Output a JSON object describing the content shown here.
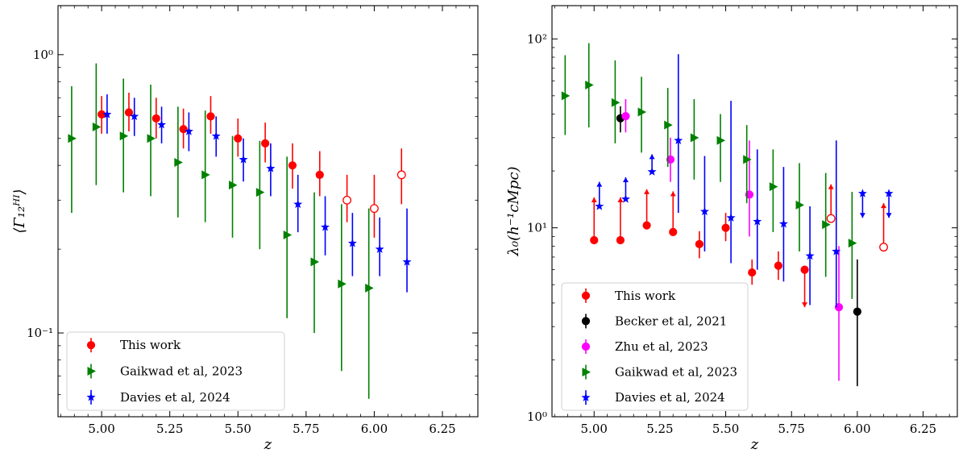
{
  "chart_data": [
    {
      "type": "scatter",
      "xlabel": "z",
      "ylabel": "⟨Γ₁₂ᴴᴵ⟩",
      "xlim": [
        4.84,
        6.38
      ],
      "ylim": [
        0.05,
        1.5
      ],
      "yscale": "log",
      "x_ticks": [
        5.0,
        5.25,
        5.5,
        5.75,
        6.0,
        6.25
      ],
      "x_tick_labels": [
        "5.00",
        "5.25",
        "5.50",
        "5.75",
        "6.00",
        "6.25"
      ],
      "y_ticks": [
        0.1,
        1.0
      ],
      "y_tick_labels": [
        "10⁻¹",
        "10⁰"
      ],
      "grid": false,
      "legend_position": "lower-left",
      "series": [
        {
          "name": "This work",
          "color": "#ff0000",
          "marker": "circle",
          "points": [
            {
              "x": 5.0,
              "y": 0.61,
              "lo": 0.52,
              "hi": 0.71
            },
            {
              "x": 5.1,
              "y": 0.62,
              "lo": 0.53,
              "hi": 0.73
            },
            {
              "x": 5.2,
              "y": 0.59,
              "lo": 0.5,
              "hi": 0.7
            },
            {
              "x": 5.3,
              "y": 0.54,
              "lo": 0.46,
              "hi": 0.64
            },
            {
              "x": 5.4,
              "y": 0.6,
              "lo": 0.52,
              "hi": 0.71
            },
            {
              "x": 5.5,
              "y": 0.5,
              "lo": 0.43,
              "hi": 0.59
            },
            {
              "x": 5.6,
              "y": 0.48,
              "lo": 0.41,
              "hi": 0.57
            },
            {
              "x": 5.7,
              "y": 0.4,
              "lo": 0.33,
              "hi": 0.48
            },
            {
              "x": 5.8,
              "y": 0.37,
              "lo": 0.31,
              "hi": 0.45
            },
            {
              "x": 5.9,
              "y": 0.3,
              "lo": 0.25,
              "hi": 0.37,
              "open": true
            },
            {
              "x": 6.0,
              "y": 0.28,
              "lo": 0.22,
              "hi": 0.37,
              "open": true
            },
            {
              "x": 6.1,
              "y": 0.37,
              "lo": 0.29,
              "hi": 0.46,
              "open": true
            }
          ]
        },
        {
          "name": "Gaikwad et al, 2023",
          "color": "#008000",
          "marker": "triangle-right",
          "points": [
            {
              "x": 4.89,
              "y": 0.5,
              "lo": 0.27,
              "hi": 0.77
            },
            {
              "x": 4.98,
              "y": 0.55,
              "lo": 0.34,
              "hi": 0.93
            },
            {
              "x": 5.08,
              "y": 0.51,
              "lo": 0.32,
              "hi": 0.82
            },
            {
              "x": 5.18,
              "y": 0.5,
              "lo": 0.31,
              "hi": 0.78
            },
            {
              "x": 5.28,
              "y": 0.41,
              "lo": 0.26,
              "hi": 0.65
            },
            {
              "x": 5.38,
              "y": 0.37,
              "lo": 0.25,
              "hi": 0.63
            },
            {
              "x": 5.48,
              "y": 0.34,
              "lo": 0.22,
              "hi": 0.51
            },
            {
              "x": 5.58,
              "y": 0.32,
              "lo": 0.2,
              "hi": 0.49
            },
            {
              "x": 5.68,
              "y": 0.225,
              "lo": 0.113,
              "hi": 0.43
            },
            {
              "x": 5.78,
              "y": 0.18,
              "lo": 0.1,
              "hi": 0.32
            },
            {
              "x": 5.88,
              "y": 0.15,
              "lo": 0.073,
              "hi": 0.29
            },
            {
              "x": 5.98,
              "y": 0.145,
              "lo": 0.058,
              "hi": 0.28
            }
          ]
        },
        {
          "name": "Davies et al, 2024",
          "color": "#0000ff",
          "marker": "star",
          "points": [
            {
              "x": 5.02,
              "y": 0.61,
              "lo": 0.52,
              "hi": 0.72
            },
            {
              "x": 5.12,
              "y": 0.6,
              "lo": 0.51,
              "hi": 0.7
            },
            {
              "x": 5.22,
              "y": 0.56,
              "lo": 0.48,
              "hi": 0.65
            },
            {
              "x": 5.32,
              "y": 0.53,
              "lo": 0.45,
              "hi": 0.62
            },
            {
              "x": 5.42,
              "y": 0.51,
              "lo": 0.43,
              "hi": 0.6
            },
            {
              "x": 5.52,
              "y": 0.42,
              "lo": 0.35,
              "hi": 0.5
            },
            {
              "x": 5.62,
              "y": 0.39,
              "lo": 0.31,
              "hi": 0.48
            },
            {
              "x": 5.72,
              "y": 0.29,
              "lo": 0.23,
              "hi": 0.37
            },
            {
              "x": 5.82,
              "y": 0.24,
              "lo": 0.19,
              "hi": 0.31
            },
            {
              "x": 5.92,
              "y": 0.21,
              "lo": 0.16,
              "hi": 0.27
            },
            {
              "x": 6.02,
              "y": 0.2,
              "lo": 0.16,
              "hi": 0.26
            },
            {
              "x": 6.12,
              "y": 0.18,
              "lo": 0.14,
              "hi": 0.28
            }
          ]
        }
      ]
    },
    {
      "type": "scatter",
      "xlabel": "z",
      "ylabel": "λ₀(h⁻¹cMpc)",
      "xlim": [
        4.84,
        6.38
      ],
      "ylim": [
        1,
        150
      ],
      "yscale": "log",
      "x_ticks": [
        5.0,
        5.25,
        5.5,
        5.75,
        6.0,
        6.25
      ],
      "x_tick_labels": [
        "5.00",
        "5.25",
        "5.50",
        "5.75",
        "6.00",
        "6.25"
      ],
      "y_ticks": [
        1,
        10,
        100
      ],
      "y_tick_labels": [
        "10⁰",
        "10¹",
        "10²"
      ],
      "grid": false,
      "legend_position": "lower-left",
      "series": [
        {
          "name": "This work",
          "color": "#ff0000",
          "marker": "circle",
          "points": [
            {
              "x": 5.0,
              "y": 8.6,
              "limit": "lower",
              "arrow_to": 14.5
            },
            {
              "x": 5.1,
              "y": 8.6,
              "limit": "lower",
              "arrow_to": 14.5
            },
            {
              "x": 5.2,
              "y": 10.3,
              "limit": "lower",
              "arrow_to": 16.0
            },
            {
              "x": 5.3,
              "y": 9.5,
              "limit": "lower",
              "arrow_to": 15.6
            },
            {
              "x": 5.4,
              "y": 8.2,
              "lo": 6.9,
              "hi": 9.6
            },
            {
              "x": 5.5,
              "y": 10.0,
              "lo": 8.5,
              "hi": 12.0
            },
            {
              "x": 5.6,
              "y": 5.8,
              "lo": 5.0,
              "hi": 6.8
            },
            {
              "x": 5.7,
              "y": 6.3,
              "lo": 5.3,
              "hi": 7.5
            },
            {
              "x": 5.8,
              "y": 6.0,
              "limit": "upper",
              "arrow_to": 3.8
            },
            {
              "x": 5.9,
              "y": 11.2,
              "limit": "lower",
              "arrow_to": 17.0,
              "open": true
            },
            {
              "x": 6.1,
              "y": 7.9,
              "limit": "lower",
              "arrow_to": 13.5,
              "open": true
            }
          ]
        },
        {
          "name": "Becker et al, 2021",
          "color": "#000000",
          "marker": "circle",
          "points": [
            {
              "x": 5.1,
              "y": 38,
              "lo": 32,
              "hi": 44
            },
            {
              "x": 6.0,
              "y": 3.6,
              "lo": 1.45,
              "hi": 6.8
            }
          ]
        },
        {
          "name": "Zhu et al, 2023",
          "color": "#ff00ff",
          "marker": "circle",
          "points": [
            {
              "x": 5.12,
              "y": 39,
              "lo": 32,
              "hi": 48
            },
            {
              "x": 5.29,
              "y": 23,
              "lo": 17.5,
              "hi": 30
            },
            {
              "x": 5.59,
              "y": 15,
              "lo": 9.0,
              "hi": 29
            },
            {
              "x": 5.93,
              "y": 3.8,
              "lo": 1.55,
              "hi": 8.0
            }
          ]
        },
        {
          "name": "Gaikwad et al, 2023",
          "color": "#008000",
          "marker": "triangle-right",
          "points": [
            {
              "x": 4.89,
              "y": 50,
              "lo": 31,
              "hi": 82
            },
            {
              "x": 4.98,
              "y": 57,
              "lo": 34,
              "hi": 95
            },
            {
              "x": 5.08,
              "y": 46,
              "lo": 28,
              "hi": 77
            },
            {
              "x": 5.18,
              "y": 41,
              "lo": 25,
              "hi": 63
            },
            {
              "x": 5.28,
              "y": 35,
              "lo": 21,
              "hi": 55
            },
            {
              "x": 5.38,
              "y": 30,
              "lo": 18,
              "hi": 48
            },
            {
              "x": 5.48,
              "y": 29,
              "lo": 17.5,
              "hi": 40
            },
            {
              "x": 5.58,
              "y": 23,
              "lo": 13.5,
              "hi": 35
            },
            {
              "x": 5.68,
              "y": 16.5,
              "lo": 9.5,
              "hi": 26
            },
            {
              "x": 5.78,
              "y": 13.2,
              "lo": 7.5,
              "hi": 22
            },
            {
              "x": 5.88,
              "y": 10.4,
              "lo": 5.5,
              "hi": 19.5
            },
            {
              "x": 5.98,
              "y": 8.3,
              "lo": 4.2,
              "hi": 15.5
            }
          ]
        },
        {
          "name": "Davies et al, 2024",
          "color": "#0000ff",
          "marker": "star",
          "points": [
            {
              "x": 5.02,
              "y": 13.0,
              "limit": "lower",
              "arrow_to": 17.5
            },
            {
              "x": 5.12,
              "y": 14.2,
              "limit": "lower",
              "arrow_to": 18.5
            },
            {
              "x": 5.22,
              "y": 19.8,
              "limit": "lower",
              "arrow_to": 24.5
            },
            {
              "x": 5.32,
              "y": 29,
              "lo": 12.0,
              "hi": 83
            },
            {
              "x": 5.42,
              "y": 12.2,
              "lo": 7.5,
              "hi": 24
            },
            {
              "x": 5.52,
              "y": 11.3,
              "lo": 6.5,
              "hi": 47
            },
            {
              "x": 5.62,
              "y": 10.8,
              "lo": 6.0,
              "hi": 26
            },
            {
              "x": 5.72,
              "y": 10.5,
              "lo": 5.2,
              "hi": 21
            },
            {
              "x": 5.82,
              "y": 7.1,
              "lo": 3.9,
              "hi": 13.0
            },
            {
              "x": 5.92,
              "y": 7.5,
              "lo": 3.8,
              "hi": 29
            },
            {
              "x": 6.02,
              "y": 15.2,
              "limit": "upper",
              "arrow_to": 11.3
            },
            {
              "x": 6.12,
              "y": 15.2,
              "limit": "upper",
              "arrow_to": 11.3
            }
          ]
        }
      ]
    }
  ]
}
